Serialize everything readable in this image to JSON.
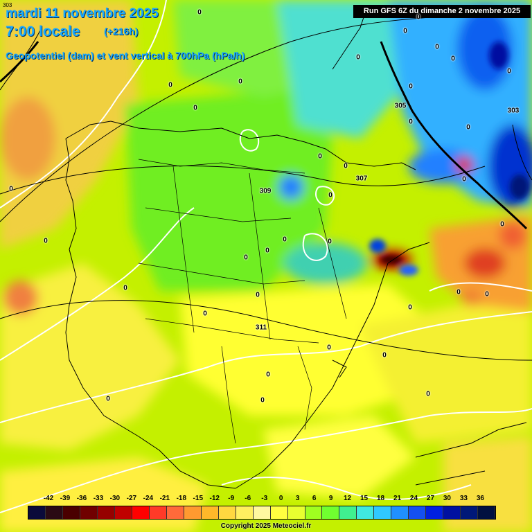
{
  "header": {
    "corner_label": "303",
    "date_line": "mardi 11 novembre 2025",
    "time_line": "7:00 locale",
    "lead_time": "(+216h)",
    "parameter": "Geopotentiel (dam) et vent vertical à 700hPa (hPa/h)",
    "run_info": "Run GFS 6Z du dimanche 2 novembre 2025"
  },
  "geopotential_labels": [
    "303",
    "305",
    "303",
    "309",
    "307",
    "311"
  ],
  "zero_labels": [
    "0",
    "0",
    "0",
    "0",
    "0",
    "0",
    "0",
    "0",
    "0",
    "0",
    "0",
    "0",
    "0",
    "0",
    "0",
    "0",
    "0",
    "0",
    "0",
    "0",
    "0",
    "0",
    "0",
    "0",
    "0",
    "0",
    "0",
    "0",
    "0",
    "0",
    "0",
    "0",
    "0",
    "0",
    "0",
    "0"
  ],
  "legend": {
    "ticks": [
      "-42",
      "-39",
      "-36",
      "-33",
      "-30",
      "-27",
      "-24",
      "-21",
      "-18",
      "-15",
      "-12",
      "-9",
      "-6",
      "-3",
      "0",
      "3",
      "6",
      "9",
      "12",
      "15",
      "18",
      "21",
      "24",
      "27",
      "30",
      "33",
      "36"
    ],
    "colors": [
      "#0a0a3a",
      "#2a0a14",
      "#4a0000",
      "#700000",
      "#960000",
      "#c00000",
      "#ff0000",
      "#ff3a28",
      "#ff6a3a",
      "#ff9a30",
      "#ffb82a",
      "#ffd840",
      "#fff060",
      "#fff8a0",
      "#ffff40",
      "#e8ff30",
      "#a0ff20",
      "#70ff30",
      "#40f090",
      "#40e8e0",
      "#30c8ff",
      "#2090ff",
      "#1450f0",
      "#0020e0",
      "#0010a0",
      "#001878",
      "#001040"
    ]
  },
  "footer": {
    "copyright": "Copyright 2025 Meteociel.fr"
  }
}
